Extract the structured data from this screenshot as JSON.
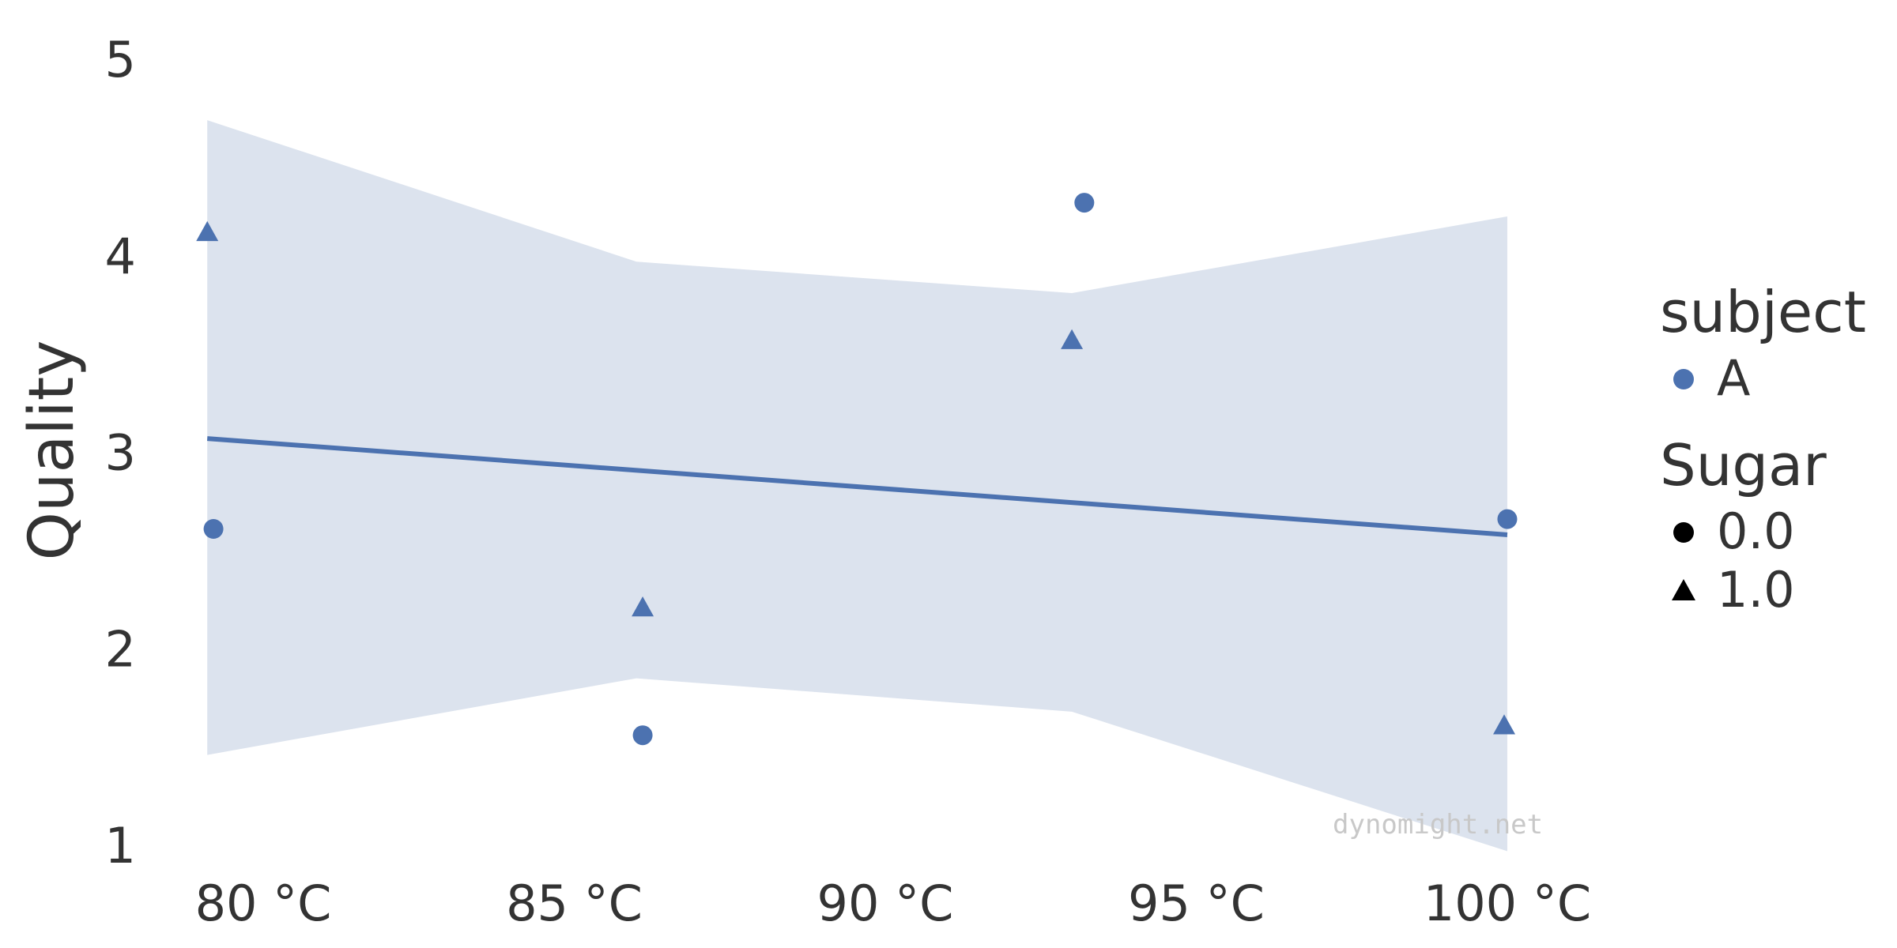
{
  "chart_data": {
    "type": "scatter",
    "title": "",
    "xlabel": "",
    "ylabel": "Quality",
    "xlim": [
      78.5,
      101.5
    ],
    "ylim": [
      1,
      5
    ],
    "x_ticks": [
      {
        "value": 80,
        "label": "80 °C"
      },
      {
        "value": 85,
        "label": "85 °C"
      },
      {
        "value": 90,
        "label": "90 °C"
      },
      {
        "value": 95,
        "label": "95 °C"
      },
      {
        "value": 100,
        "label": "100 °C"
      }
    ],
    "y_ticks": [
      {
        "value": 1,
        "label": "1"
      },
      {
        "value": 2,
        "label": "2"
      },
      {
        "value": 3,
        "label": "3"
      },
      {
        "value": 4,
        "label": "4"
      },
      {
        "value": 5,
        "label": "5"
      }
    ],
    "grid": false,
    "color": "#4c72b0",
    "band_color": "#dce3ee",
    "points": [
      {
        "x": 79.1,
        "y": 4.12,
        "sugar": "1.0"
      },
      {
        "x": 79.2,
        "y": 2.61,
        "sugar": "0.0"
      },
      {
        "x": 86.1,
        "y": 2.21,
        "sugar": "1.0"
      },
      {
        "x": 86.1,
        "y": 1.56,
        "sugar": "0.0"
      },
      {
        "x": 93.0,
        "y": 3.57,
        "sugar": "1.0"
      },
      {
        "x": 93.2,
        "y": 4.27,
        "sugar": "0.0"
      },
      {
        "x": 100.0,
        "y": 2.66,
        "sugar": "0.0"
      },
      {
        "x": 99.95,
        "y": 1.61,
        "sugar": "1.0"
      }
    ],
    "regression": {
      "x": [
        79.1,
        100.0
      ],
      "y": [
        3.07,
        2.58
      ]
    },
    "confidence_band": {
      "x": [
        79.1,
        86.0,
        93.0,
        100.0
      ],
      "upper": [
        4.69,
        3.97,
        3.81,
        4.2
      ],
      "lower": [
        1.46,
        1.85,
        1.68,
        0.97
      ]
    },
    "legend": {
      "placement": "right",
      "groups": [
        {
          "title": "subject",
          "items": [
            {
              "label": "A",
              "marker": "circle",
              "color": "#4c72b0"
            }
          ]
        },
        {
          "title": "Sugar",
          "items": [
            {
              "label": "0.0",
              "marker": "circle",
              "color": "#000000"
            },
            {
              "label": "1.0",
              "marker": "triangle",
              "color": "#000000"
            }
          ]
        }
      ]
    },
    "watermark": "dynomight.net"
  }
}
